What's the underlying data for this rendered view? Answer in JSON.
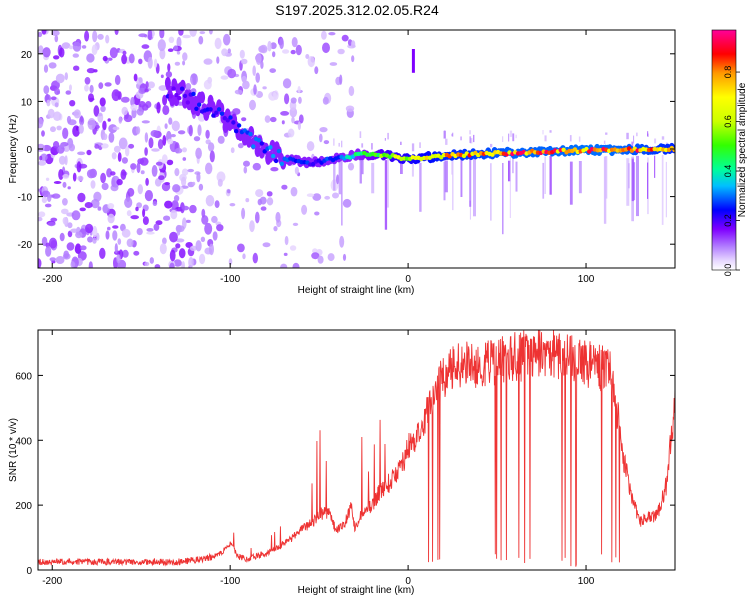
{
  "title": "S197.2025.312.02.05.R24",
  "colorbar": {
    "label": "Normalized spectral amplitude",
    "ticks": [
      0.0,
      0.2,
      0.4,
      0.6,
      0.8
    ],
    "tick_labels": [
      "0.0",
      "0.2",
      "0.4",
      "0.6",
      "0.8"
    ],
    "range": [
      0,
      0.97
    ],
    "colors": [
      "#ffffff",
      "#cc99ff",
      "#7f00ff",
      "#0000ff",
      "#00bfff",
      "#00ff99",
      "#33ff00",
      "#ccff00",
      "#ffff00",
      "#ff9900",
      "#ff0000",
      "#ff00aa"
    ]
  },
  "chart_data": [
    {
      "type": "heatmap",
      "title": "S197.2025.312.02.05.R24",
      "xlabel": "Height of straight line (km)",
      "ylabel": "Frequency (Hz)",
      "xlim": [
        -208,
        150
      ],
      "ylim": [
        -25,
        25
      ],
      "xticks": [
        -200,
        -100,
        0,
        100
      ],
      "xtick_labels": [
        "-200",
        "-100",
        "0",
        "100"
      ],
      "yticks": [
        -20,
        -10,
        0,
        10,
        20
      ],
      "ytick_labels": [
        "-20",
        "-10",
        "0",
        "10",
        "20"
      ],
      "ridge": {
        "x": [
          -130,
          -115,
          -100,
          -85,
          -70,
          -55,
          -40,
          -25,
          -10,
          0,
          20,
          40,
          60,
          80,
          100,
          120,
          150
        ],
        "freq": [
          12,
          9,
          6,
          1,
          -2,
          -3,
          -2,
          -1,
          -1.5,
          -2,
          -1.5,
          -1,
          -0.8,
          -0.5,
          -0.3,
          -0.2,
          0
        ],
        "amplitude": [
          0.25,
          0.3,
          0.3,
          0.35,
          0.35,
          0.3,
          0.35,
          0.55,
          0.7,
          0.75,
          0.85,
          0.9,
          0.95,
          0.95,
          0.97,
          0.95,
          0.85
        ]
      },
      "spike": {
        "x": 3,
        "freq_range": [
          16,
          21
        ]
      }
    },
    {
      "type": "line",
      "xlabel": "Height of straight line (km)",
      "ylabel": "SNR (10 * v/v)",
      "xlim": [
        -208,
        150
      ],
      "ylim": [
        0,
        740
      ],
      "xticks": [
        -200,
        -100,
        0,
        100
      ],
      "xtick_labels": [
        "-200",
        "-100",
        "0",
        "100"
      ],
      "yticks": [
        0,
        200,
        400,
        600
      ],
      "ytick_labels": [
        "0",
        "200",
        "400",
        "600"
      ],
      "series": [
        {
          "name": "SNR",
          "color": "#ee3333",
          "x": [
            -208,
            -190,
            -170,
            -150,
            -130,
            -120,
            -110,
            -105,
            -100,
            -95,
            -90,
            -80,
            -70,
            -65,
            -60,
            -55,
            -50,
            -45,
            -40,
            -35,
            -32,
            -30,
            -25,
            -20,
            -15,
            -10,
            -5,
            0,
            5,
            10,
            15,
            20,
            25,
            30,
            35,
            40,
            45,
            50,
            55,
            60,
            65,
            70,
            75,
            80,
            85,
            90,
            95,
            100,
            105,
            110,
            115,
            120,
            125,
            130,
            135,
            140,
            145,
            150
          ],
          "values": [
            25,
            25,
            25,
            25,
            25,
            30,
            40,
            50,
            80,
            40,
            35,
            50,
            80,
            100,
            130,
            140,
            170,
            180,
            120,
            150,
            200,
            130,
            180,
            200,
            250,
            270,
            300,
            380,
            420,
            480,
            560,
            600,
            620,
            640,
            650,
            630,
            640,
            640,
            650,
            660,
            660,
            670,
            665,
            670,
            660,
            650,
            650,
            640,
            630,
            620,
            600,
            380,
            240,
            150,
            160,
            170,
            260,
            520
          ]
        }
      ]
    }
  ]
}
